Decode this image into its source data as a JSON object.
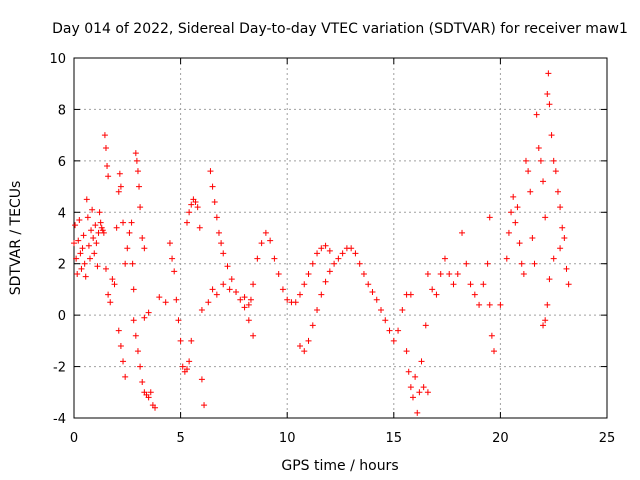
{
  "chart_data": {
    "type": "scatter",
    "title": "Day 014 of 2022, Sidereal Day-to-day VTEC variation (SDTVAR) for receiver maw1",
    "xlabel": "GPS time / hours",
    "ylabel": "SDTVAR / TECUs",
    "xlim": [
      0,
      25
    ],
    "ylim": [
      -4,
      10
    ],
    "xticks": [
      "0",
      "5",
      "10",
      "15",
      "20",
      "25"
    ],
    "yticks": [
      "-4",
      "-2",
      "0",
      "2",
      "4",
      "6",
      "8",
      "10"
    ],
    "grid": true,
    "marker": "+",
    "color": "#ff0000",
    "series": [
      {
        "name": "maw1",
        "points": [
          [
            0.0,
            2.8
          ],
          [
            0.05,
            3.5
          ],
          [
            0.1,
            2.2
          ],
          [
            0.15,
            1.6
          ],
          [
            0.2,
            2.9
          ],
          [
            0.25,
            3.7
          ],
          [
            0.3,
            2.4
          ],
          [
            0.35,
            1.8
          ],
          [
            0.4,
            2.6
          ],
          [
            0.45,
            3.1
          ],
          [
            0.5,
            2.0
          ],
          [
            0.55,
            1.5
          ],
          [
            0.6,
            4.5
          ],
          [
            0.65,
            3.8
          ],
          [
            0.7,
            2.7
          ],
          [
            0.75,
            2.2
          ],
          [
            0.8,
            3.3
          ],
          [
            0.85,
            4.1
          ],
          [
            0.9,
            3.0
          ],
          [
            0.95,
            2.4
          ],
          [
            1.0,
            3.5
          ],
          [
            1.05,
            2.8
          ],
          [
            1.1,
            1.9
          ],
          [
            1.15,
            3.2
          ],
          [
            1.2,
            4.0
          ],
          [
            1.25,
            3.6
          ],
          [
            1.3,
            3.4
          ],
          [
            1.35,
            3.3
          ],
          [
            1.4,
            3.2
          ],
          [
            1.45,
            7.0
          ],
          [
            1.5,
            6.5
          ],
          [
            1.55,
            5.8
          ],
          [
            1.6,
            5.4
          ],
          [
            1.5,
            1.8
          ],
          [
            1.6,
            0.8
          ],
          [
            1.7,
            0.5
          ],
          [
            1.8,
            1.4
          ],
          [
            1.9,
            1.2
          ],
          [
            2.0,
            3.4
          ],
          [
            2.1,
            4.8
          ],
          [
            2.15,
            5.5
          ],
          [
            2.2,
            5.0
          ],
          [
            2.3,
            3.6
          ],
          [
            2.4,
            2.0
          ],
          [
            2.1,
            -0.6
          ],
          [
            2.2,
            -1.2
          ],
          [
            2.3,
            -1.8
          ],
          [
            2.4,
            -2.4
          ],
          [
            2.5,
            2.6
          ],
          [
            2.6,
            3.2
          ],
          [
            2.7,
            3.6
          ],
          [
            2.75,
            2.0
          ],
          [
            2.8,
            1.0
          ],
          [
            2.9,
            6.3
          ],
          [
            2.95,
            6.0
          ],
          [
            3.0,
            5.6
          ],
          [
            3.05,
            5.0
          ],
          [
            3.1,
            4.2
          ],
          [
            3.2,
            3.0
          ],
          [
            3.3,
            2.6
          ],
          [
            2.8,
            -0.2
          ],
          [
            2.9,
            -0.8
          ],
          [
            3.0,
            -1.4
          ],
          [
            3.1,
            -2.0
          ],
          [
            3.2,
            -2.6
          ],
          [
            3.3,
            -3.0
          ],
          [
            3.4,
            -3.1
          ],
          [
            3.5,
            -3.2
          ],
          [
            3.6,
            -3.0
          ],
          [
            3.7,
            -3.5
          ],
          [
            3.8,
            -3.6
          ],
          [
            3.3,
            -0.1
          ],
          [
            3.5,
            0.1
          ],
          [
            4.0,
            0.7
          ],
          [
            4.3,
            0.5
          ],
          [
            4.5,
            2.8
          ],
          [
            4.6,
            2.2
          ],
          [
            4.7,
            1.7
          ],
          [
            4.8,
            0.6
          ],
          [
            4.9,
            -0.2
          ],
          [
            5.0,
            -1.0
          ],
          [
            5.1,
            -2.0
          ],
          [
            5.2,
            -2.2
          ],
          [
            5.3,
            -2.1
          ],
          [
            5.4,
            -1.8
          ],
          [
            5.5,
            -1.0
          ],
          [
            5.3,
            3.6
          ],
          [
            5.4,
            4.0
          ],
          [
            5.5,
            4.3
          ],
          [
            5.6,
            4.5
          ],
          [
            5.7,
            4.4
          ],
          [
            5.8,
            4.2
          ],
          [
            5.9,
            3.4
          ],
          [
            6.0,
            0.2
          ],
          [
            6.0,
            -2.5
          ],
          [
            6.1,
            -3.5
          ],
          [
            6.3,
            0.5
          ],
          [
            6.5,
            1.0
          ],
          [
            6.7,
            0.8
          ],
          [
            7.0,
            1.2
          ],
          [
            7.3,
            1.0
          ],
          [
            7.6,
            0.9
          ],
          [
            8.0,
            0.7
          ],
          [
            8.3,
            0.6
          ],
          [
            6.4,
            5.6
          ],
          [
            6.5,
            5.0
          ],
          [
            6.6,
            4.4
          ],
          [
            6.7,
            3.8
          ],
          [
            6.8,
            3.2
          ],
          [
            6.9,
            2.8
          ],
          [
            7.0,
            2.4
          ],
          [
            7.2,
            1.9
          ],
          [
            7.4,
            1.4
          ],
          [
            7.6,
            0.9
          ],
          [
            7.8,
            0.6
          ],
          [
            8.0,
            0.3
          ],
          [
            8.2,
            -0.2
          ],
          [
            8.4,
            -0.8
          ],
          [
            8.2,
            0.4
          ],
          [
            8.4,
            1.2
          ],
          [
            8.6,
            2.2
          ],
          [
            8.8,
            2.8
          ],
          [
            9.0,
            3.2
          ],
          [
            9.2,
            2.9
          ],
          [
            9.4,
            2.2
          ],
          [
            9.6,
            1.6
          ],
          [
            9.8,
            1.0
          ],
          [
            10.0,
            0.6
          ],
          [
            10.2,
            0.5
          ],
          [
            10.4,
            0.5
          ],
          [
            10.6,
            0.8
          ],
          [
            10.8,
            1.2
          ],
          [
            11.0,
            1.6
          ],
          [
            11.2,
            2.0
          ],
          [
            11.4,
            2.4
          ],
          [
            11.6,
            2.6
          ],
          [
            11.8,
            2.7
          ],
          [
            12.0,
            2.5
          ],
          [
            10.6,
            -1.2
          ],
          [
            10.8,
            -1.4
          ],
          [
            11.0,
            -1.0
          ],
          [
            11.2,
            -0.4
          ],
          [
            11.4,
            0.2
          ],
          [
            11.6,
            0.8
          ],
          [
            11.8,
            1.3
          ],
          [
            12.0,
            1.7
          ],
          [
            12.2,
            2.0
          ],
          [
            12.4,
            2.2
          ],
          [
            12.6,
            2.4
          ],
          [
            12.8,
            2.6
          ],
          [
            13.0,
            2.6
          ],
          [
            13.2,
            2.4
          ],
          [
            13.4,
            2.0
          ],
          [
            13.6,
            1.6
          ],
          [
            13.8,
            1.2
          ],
          [
            14.0,
            0.9
          ],
          [
            14.2,
            0.6
          ],
          [
            14.4,
            0.2
          ],
          [
            14.6,
            -0.2
          ],
          [
            14.8,
            -0.6
          ],
          [
            15.0,
            -1.0
          ],
          [
            15.2,
            -0.6
          ],
          [
            15.4,
            0.2
          ],
          [
            15.6,
            0.8
          ],
          [
            15.8,
            0.8
          ],
          [
            15.6,
            -1.4
          ],
          [
            15.7,
            -2.2
          ],
          [
            15.8,
            -2.8
          ],
          [
            15.9,
            -3.2
          ],
          [
            16.0,
            -2.4
          ],
          [
            16.1,
            -3.8
          ],
          [
            16.2,
            -3.0
          ],
          [
            16.3,
            -1.8
          ],
          [
            16.4,
            -2.8
          ],
          [
            16.6,
            -3.0
          ],
          [
            16.5,
            -0.4
          ],
          [
            16.6,
            1.6
          ],
          [
            16.8,
            1.0
          ],
          [
            17.0,
            0.8
          ],
          [
            17.2,
            1.6
          ],
          [
            17.4,
            2.2
          ],
          [
            17.6,
            1.6
          ],
          [
            17.8,
            1.2
          ],
          [
            18.0,
            1.6
          ],
          [
            18.2,
            3.2
          ],
          [
            18.4,
            2.0
          ],
          [
            18.6,
            1.2
          ],
          [
            18.8,
            0.8
          ],
          [
            19.0,
            0.4
          ],
          [
            19.2,
            1.2
          ],
          [
            19.4,
            2.0
          ],
          [
            19.5,
            0.4
          ],
          [
            19.6,
            -0.8
          ],
          [
            19.7,
            -1.4
          ],
          [
            19.5,
            3.8
          ],
          [
            20.0,
            0.4
          ],
          [
            20.3,
            2.2
          ],
          [
            20.4,
            3.2
          ],
          [
            20.5,
            4.0
          ],
          [
            20.6,
            4.6
          ],
          [
            20.7,
            3.6
          ],
          [
            20.8,
            4.2
          ],
          [
            20.9,
            2.8
          ],
          [
            21.0,
            2.0
          ],
          [
            21.1,
            1.6
          ],
          [
            21.2,
            6.0
          ],
          [
            21.3,
            5.6
          ],
          [
            21.4,
            4.8
          ],
          [
            21.5,
            3.0
          ],
          [
            21.6,
            2.0
          ],
          [
            21.7,
            7.8
          ],
          [
            21.8,
            6.5
          ],
          [
            21.9,
            6.0
          ],
          [
            22.0,
            5.2
          ],
          [
            22.1,
            3.8
          ],
          [
            22.2,
            8.6
          ],
          [
            22.25,
            9.4
          ],
          [
            22.3,
            8.2
          ],
          [
            22.4,
            7.0
          ],
          [
            22.5,
            6.0
          ],
          [
            22.6,
            5.6
          ],
          [
            22.7,
            4.8
          ],
          [
            22.8,
            4.2
          ],
          [
            22.9,
            3.4
          ],
          [
            22.0,
            -0.4
          ],
          [
            22.1,
            -0.2
          ],
          [
            22.2,
            0.4
          ],
          [
            22.3,
            1.4
          ],
          [
            22.5,
            2.2
          ],
          [
            22.8,
            2.6
          ],
          [
            23.0,
            3.0
          ],
          [
            23.1,
            1.8
          ],
          [
            23.2,
            1.2
          ]
        ]
      }
    ]
  }
}
